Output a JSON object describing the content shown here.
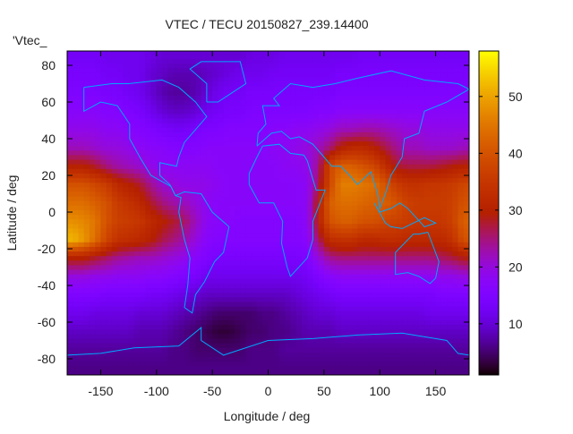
{
  "chart_data": {
    "type": "heatmap",
    "title": "VTEC / TECU 20150827_239.14400",
    "xlabel": "Longitude / deg",
    "ylabel": "Latitude / deg",
    "key_label": "'Vtec_",
    "xlim": [
      -180,
      180
    ],
    "ylim": [
      -88.5,
      88.5
    ],
    "xticks": [
      -150,
      -100,
      -50,
      0,
      50,
      100,
      150
    ],
    "yticks": [
      80,
      60,
      40,
      20,
      0,
      -20,
      -40,
      -60,
      -80
    ],
    "colorbar": {
      "range": [
        1,
        58
      ],
      "ticks": [
        10,
        20,
        30,
        40,
        50
      ],
      "palette": "black-purple-red-orange-yellow"
    },
    "grid_lon": [
      -175,
      -165,
      -155,
      -145,
      -135,
      -125,
      -115,
      -105,
      -95,
      -85,
      -75,
      -65,
      -55,
      -45,
      -35,
      -25,
      -15,
      -5,
      5,
      15,
      25,
      35,
      45,
      55,
      65,
      75,
      85,
      95,
      105,
      115,
      125,
      135,
      145,
      155,
      165,
      175
    ],
    "grid_lat": [
      85,
      75,
      65,
      55,
      45,
      35,
      25,
      15,
      5,
      -5,
      -15,
      -25,
      -35,
      -45,
      -55,
      -65,
      -75,
      -85
    ],
    "values": [
      [
        13,
        13,
        13,
        12,
        12,
        12,
        12,
        11,
        10,
        10,
        10,
        10,
        10,
        10,
        10,
        10,
        11,
        11,
        11,
        12,
        12,
        12,
        12,
        12,
        12,
        12,
        13,
        13,
        13,
        13,
        13,
        13,
        13,
        13,
        13,
        13
      ],
      [
        14,
        14,
        14,
        13,
        13,
        12,
        12,
        10,
        9,
        8,
        8,
        8,
        9,
        10,
        11,
        12,
        12,
        12,
        13,
        13,
        13,
        13,
        13,
        13,
        14,
        14,
        14,
        14,
        14,
        14,
        14,
        14,
        14,
        14,
        14,
        14
      ],
      [
        15,
        15,
        15,
        14,
        14,
        13,
        12,
        10,
        8,
        7,
        7,
        8,
        10,
        12,
        13,
        13,
        14,
        14,
        14,
        14,
        14,
        14,
        14,
        14,
        15,
        15,
        15,
        15,
        15,
        15,
        15,
        15,
        15,
        15,
        15,
        15
      ],
      [
        17,
        17,
        17,
        16,
        16,
        15,
        14,
        12,
        10,
        9,
        9,
        10,
        12,
        13,
        14,
        14,
        15,
        15,
        15,
        15,
        15,
        15,
        16,
        16,
        17,
        17,
        17,
        17,
        17,
        17,
        17,
        17,
        17,
        17,
        17,
        17
      ],
      [
        19,
        19,
        19,
        18,
        18,
        17,
        16,
        15,
        14,
        13,
        13,
        14,
        15,
        15,
        16,
        16,
        16,
        16,
        17,
        17,
        18,
        18,
        19,
        20,
        22,
        22,
        23,
        23,
        22,
        21,
        20,
        20,
        19,
        19,
        19,
        19
      ],
      [
        22,
        22,
        21,
        20,
        20,
        19,
        18,
        17,
        17,
        16,
        16,
        16,
        17,
        17,
        17,
        17,
        17,
        17,
        18,
        18,
        19,
        20,
        22,
        25,
        30,
        32,
        32,
        30,
        27,
        24,
        22,
        22,
        21,
        21,
        21,
        22
      ],
      [
        30,
        30,
        28,
        25,
        23,
        22,
        21,
        19,
        18,
        18,
        18,
        18,
        18,
        17,
        17,
        17,
        17,
        17,
        17,
        18,
        18,
        19,
        24,
        38,
        42,
        42,
        40,
        38,
        33,
        28,
        27,
        27,
        27,
        28,
        29,
        30
      ],
      [
        40,
        40,
        38,
        36,
        32,
        30,
        28,
        24,
        21,
        20,
        19,
        19,
        19,
        18,
        17,
        17,
        17,
        17,
        17,
        17,
        17,
        18,
        26,
        38,
        46,
        46,
        45,
        44,
        40,
        36,
        34,
        34,
        35,
        35,
        36,
        38
      ],
      [
        44,
        44,
        42,
        40,
        36,
        34,
        32,
        28,
        25,
        23,
        22,
        20,
        18,
        17,
        17,
        17,
        17,
        17,
        17,
        17,
        17,
        18,
        30,
        42,
        44,
        44,
        43,
        42,
        42,
        40,
        37,
        36,
        36,
        36,
        37,
        40
      ],
      [
        48,
        47,
        45,
        40,
        37,
        36,
        35,
        32,
        30,
        28,
        26,
        22,
        18,
        17,
        17,
        16,
        16,
        16,
        16,
        16,
        16,
        18,
        30,
        40,
        42,
        42,
        40,
        40,
        38,
        37,
        36,
        35,
        35,
        35,
        37,
        42
      ],
      [
        52,
        49,
        44,
        38,
        34,
        33,
        32,
        30,
        27,
        25,
        23,
        20,
        17,
        16,
        16,
        16,
        16,
        16,
        16,
        16,
        16,
        17,
        26,
        33,
        34,
        34,
        32,
        32,
        33,
        33,
        32,
        32,
        32,
        32,
        34,
        40
      ],
      [
        30,
        30,
        28,
        26,
        24,
        23,
        22,
        22,
        21,
        20,
        19,
        17,
        15,
        14,
        14,
        14,
        14,
        14,
        14,
        14,
        14,
        15,
        20,
        24,
        25,
        25,
        25,
        25,
        25,
        25,
        25,
        25,
        25,
        26,
        27,
        29
      ],
      [
        20,
        20,
        19,
        19,
        18,
        18,
        18,
        17,
        17,
        16,
        15,
        14,
        12,
        12,
        12,
        12,
        12,
        12,
        12,
        12,
        12,
        13,
        15,
        17,
        18,
        18,
        18,
        18,
        18,
        18,
        18,
        18,
        18,
        19,
        19,
        20
      ],
      [
        15,
        15,
        15,
        14,
        14,
        14,
        14,
        13,
        13,
        12,
        11,
        10,
        9,
        9,
        9,
        9,
        9,
        9,
        9,
        9,
        10,
        11,
        12,
        13,
        14,
        14,
        14,
        14,
        14,
        14,
        14,
        14,
        14,
        15,
        15,
        15
      ],
      [
        12,
        12,
        11,
        11,
        11,
        11,
        10,
        10,
        10,
        9,
        8,
        7,
        6,
        5,
        5,
        5,
        5,
        6,
        6,
        7,
        8,
        9,
        10,
        10,
        11,
        11,
        11,
        11,
        11,
        11,
        11,
        11,
        12,
        12,
        12,
        12
      ],
      [
        9,
        9,
        9,
        9,
        9,
        9,
        8,
        8,
        8,
        7,
        6,
        5,
        4,
        3,
        3,
        4,
        5,
        5,
        6,
        6,
        7,
        8,
        8,
        8,
        9,
        9,
        9,
        9,
        9,
        9,
        9,
        9,
        9,
        9,
        9,
        9
      ],
      [
        7,
        7,
        7,
        7,
        7,
        7,
        7,
        7,
        7,
        6,
        6,
        5,
        5,
        5,
        5,
        5,
        6,
        6,
        6,
        7,
        7,
        7,
        7,
        7,
        7,
        7,
        7,
        7,
        7,
        7,
        7,
        7,
        7,
        7,
        7,
        7
      ],
      [
        6,
        6,
        6,
        6,
        6,
        6,
        6,
        6,
        6,
        6,
        6,
        6,
        6,
        6,
        6,
        6,
        6,
        6,
        6,
        6,
        6,
        6,
        6,
        6,
        6,
        6,
        6,
        6,
        6,
        6,
        6,
        6,
        6,
        6,
        6,
        6
      ]
    ],
    "coastline_color": "#00a8ff"
  }
}
